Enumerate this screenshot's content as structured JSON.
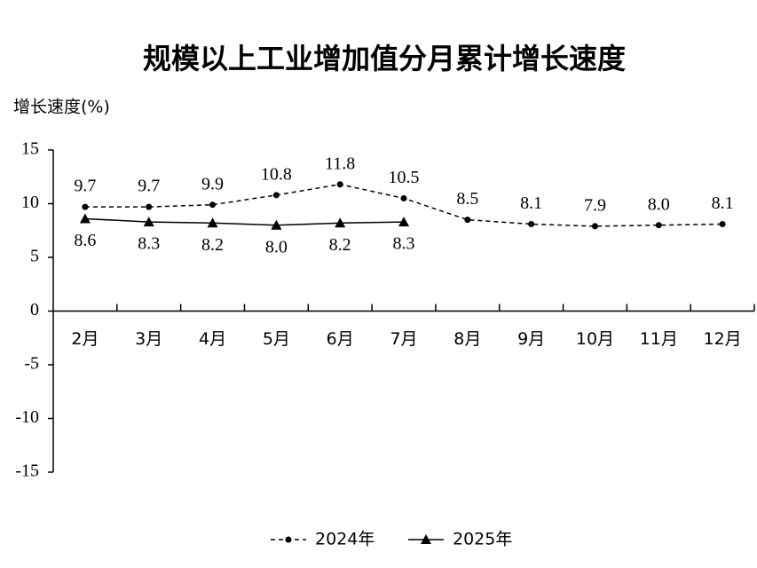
{
  "chart_data": {
    "type": "line",
    "title": "规模以上工业增加值分月累计增长速度",
    "y_axis_label": "增长速度(%)",
    "categories": [
      "2月",
      "3月",
      "4月",
      "5月",
      "6月",
      "7月",
      "8月",
      "9月",
      "10月",
      "11月",
      "12月"
    ],
    "series": [
      {
        "name": "2024年",
        "color": "#000000",
        "dashed": true,
        "marker": "circle",
        "label_position": "above",
        "values": [
          9.7,
          9.7,
          9.9,
          10.8,
          11.8,
          10.5,
          8.5,
          8.1,
          7.9,
          8.0,
          8.1
        ],
        "value_labels": [
          "9.7",
          "9.7",
          "9.9",
          "10.8",
          "11.8",
          "10.5",
          "8.5",
          "8.1",
          "7.9",
          "8.0",
          "8.1"
        ]
      },
      {
        "name": "2025年",
        "color": "#000000",
        "dashed": false,
        "marker": "triangle",
        "label_position": "below",
        "values": [
          8.6,
          8.3,
          8.2,
          8.0,
          8.2,
          8.3,
          null,
          null,
          null,
          null,
          null
        ],
        "value_labels": [
          "8.6",
          "8.3",
          "8.2",
          "8.0",
          "8.2",
          "8.3",
          null,
          null,
          null,
          null,
          null
        ]
      }
    ],
    "ylim": [
      -15,
      15
    ],
    "yticks": [
      15,
      10,
      5,
      0,
      -5,
      -10,
      -15
    ],
    "grid": false,
    "legend": "bottom"
  }
}
